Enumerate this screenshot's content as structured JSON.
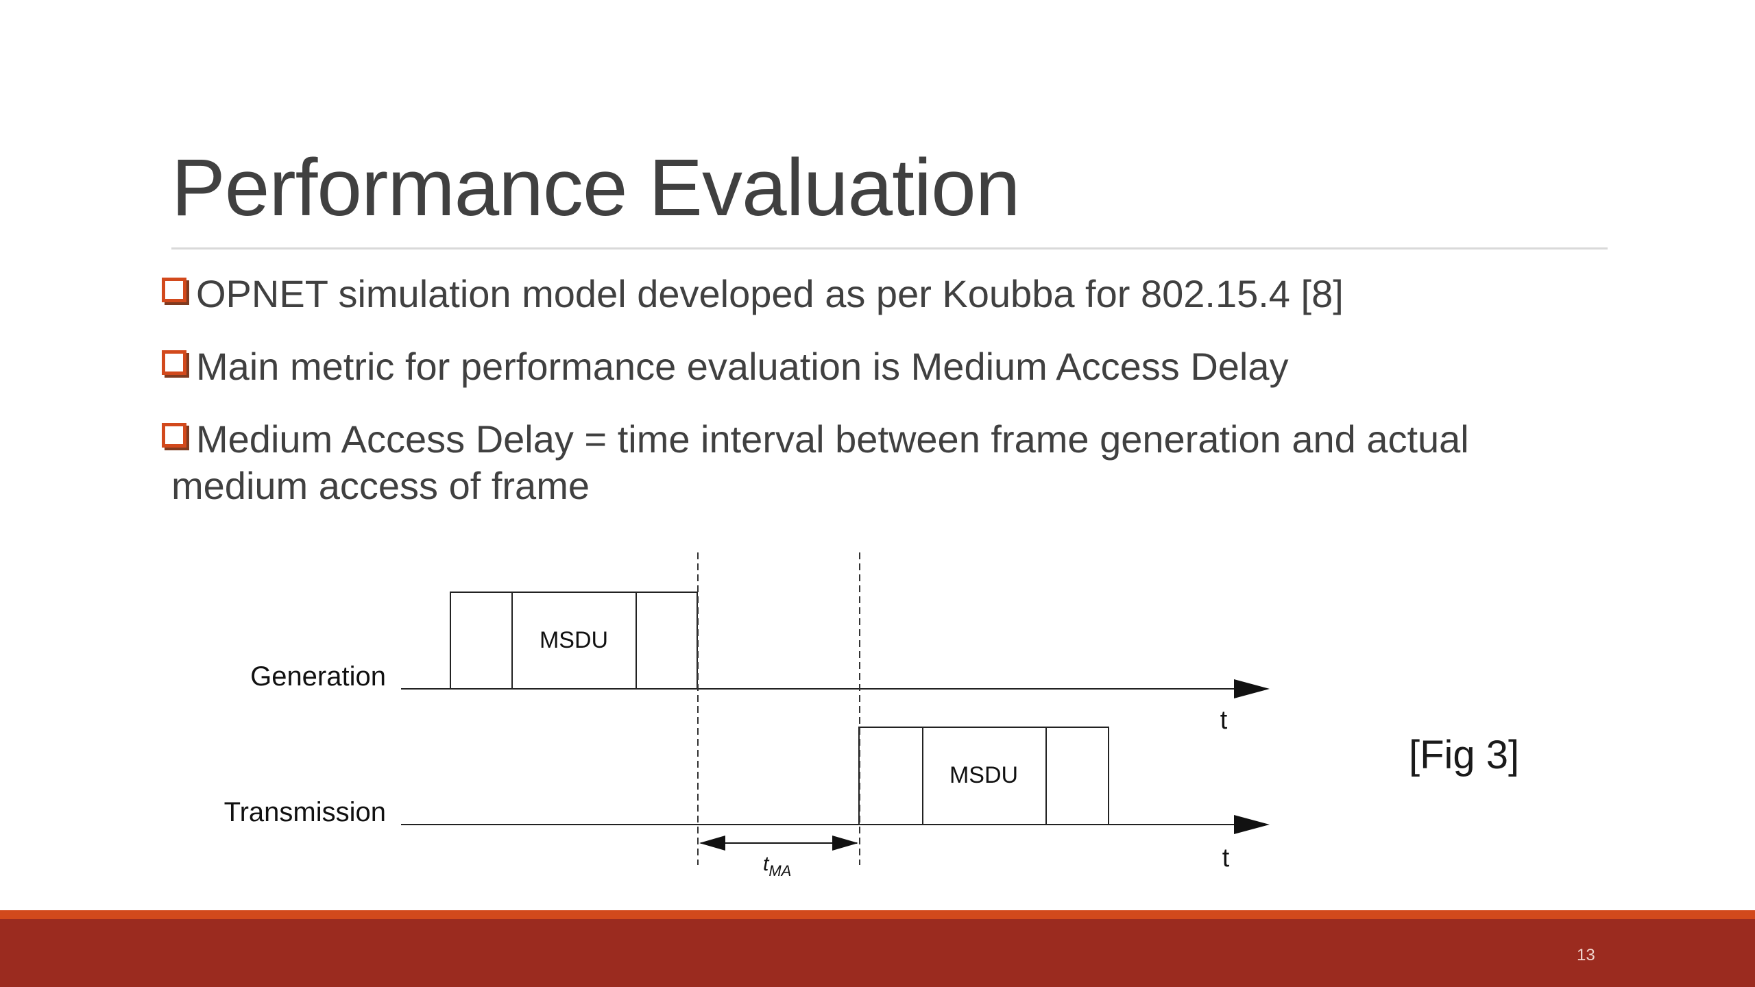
{
  "slide": {
    "title": "Performance Evaluation",
    "bullets": [
      {
        "text": "OPNET simulation model developed as per Koubba for 802.15.4 [8]"
      },
      {
        "text": "Main metric for performance evaluation is Medium Access Delay"
      },
      {
        "text": "Medium Access Delay = time interval between frame generation and actual",
        "continuation": "medium access of frame"
      }
    ],
    "figure_label": "[Fig 3]",
    "page_number": "13",
    "colors": {
      "accent": "#d2491c",
      "footer": "#9b2b1f",
      "title_rule": "#d9d9d9"
    }
  },
  "diagram": {
    "generation_label": "Generation",
    "transmission_label": "Transmission",
    "generation_frame_label": "MSDU",
    "transmission_frame_label": "MSDU",
    "generation_axis_label": "t",
    "transmission_axis_label": "t",
    "delay_label_base": "t",
    "delay_label_sub": "MA"
  }
}
